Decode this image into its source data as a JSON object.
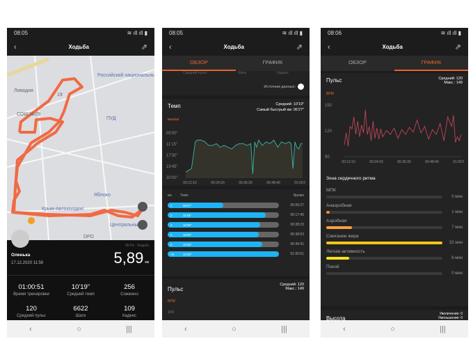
{
  "status": {
    "time1": "08:05",
    "time2": "08:05",
    "time3": "08:06",
    "icons": "▣ ⌕ ▶ •",
    "right": "≋ ıll ıll ▮"
  },
  "header": {
    "title": "Ходьба",
    "back_icon": "chevron-left",
    "share_icon": "share"
  },
  "nav": {
    "back": "‹",
    "home": "○",
    "recents": "|||"
  },
  "tabs": {
    "overview": "ОБЗОР",
    "chart": "ГРАФИК"
  },
  "map": {
    "labels": [
      "Российский национальный",
      "Ливадия",
      "19",
      "СОШ №29",
      "ПУД",
      "Яблоко",
      "Крым-Автохолдинг",
      "Центральный",
      "DPD"
    ],
    "route_color": "#f06a45"
  },
  "summary": {
    "user": "Оленька",
    "datetime": "17.12.2020 11:56",
    "source": "Mi Fit · Ходьба",
    "distance": "5,89",
    "unit": "км",
    "stats": [
      {
        "value": "01:00:51",
        "label": "Время тренировки"
      },
      {
        "value": "10'19\"",
        "label": "Средний темп"
      },
      {
        "value": "256",
        "label": "Сожжено"
      },
      {
        "value": "120",
        "label": "Средний пульс"
      },
      {
        "value": "6622",
        "label": "Шаги"
      },
      {
        "value": "109",
        "label": "Каденс"
      }
    ]
  },
  "overview": {
    "partial_labels": [
      "Средний пульс",
      "Шаги",
      "Каденс"
    ],
    "data_source": "Источник данных:",
    "pace": {
      "title": "Темп",
      "avg": "Средний: 10'19\"",
      "fastest": "Самый быстрый км: 06'27\"",
      "unit": "мин/км"
    },
    "splits_header": {
      "km": "км",
      "pace": "Темп",
      "time": "Время"
    },
    "splits": [
      {
        "km": "1",
        "pace": "06'27\"",
        "time": "00:06:27",
        "fill": 0.5
      },
      {
        "km": "2",
        "pace": "11'18\"",
        "time": "00:17:45",
        "fill": 0.88
      },
      {
        "km": "3",
        "pace": "10'38\"",
        "time": "00:28:23",
        "fill": 0.83
      },
      {
        "km": "4",
        "pace": "10'30\"",
        "time": "00:38:53",
        "fill": 0.82
      },
      {
        "km": "5",
        "pace": "10'48\"",
        "time": "00:49:41",
        "fill": 0.85
      },
      {
        "km": "<6",
        "pace": "12'33\"",
        "time": "01:00:51",
        "fill": 1.0
      }
    ],
    "pulse": {
      "title": "Пульс",
      "avg": "Средний: 120",
      "max": "Макс.: 149",
      "unit": "BPM",
      "tick": "150"
    }
  },
  "graph": {
    "pulse": {
      "title": "Пульс",
      "avg": "Средний: 120",
      "max": "Макс.: 149",
      "unit": "BPM"
    },
    "zones_title": "Зона сердечного ритма",
    "zones": [
      {
        "label": "МПК",
        "value": "0 мин",
        "fill": 0,
        "color": "#f08a30"
      },
      {
        "label": "Анаэробная",
        "value": "1 мин",
        "fill": 0.03,
        "color": "#f08a30"
      },
      {
        "label": "Аэробная",
        "value": "7 мин",
        "fill": 0.22,
        "color": "#f5a040"
      },
      {
        "label": "Сжигание жира",
        "value": "32 мин",
        "fill": 1.0,
        "color": "#f5c518"
      },
      {
        "label": "Легкая активность",
        "value": "6 мин",
        "fill": 0.2,
        "color": "#f5e020"
      },
      {
        "label": "Покой",
        "value": "0 мин",
        "fill": 0,
        "color": "#888"
      }
    ],
    "altitude": {
      "title": "Высота",
      "gain": "Увеличение: 0",
      "loss": "Уменьшение: 0"
    }
  },
  "chart_data": [
    {
      "type": "area",
      "title": "Темп",
      "ylabel": "мин/км",
      "y_ticks": [
        "05'00\"",
        "11'15\"",
        "17'30\"",
        "23'45\"",
        "30'00\""
      ],
      "ylim": [
        30,
        5
      ],
      "x_ticks": [
        "00:12:10",
        "00:24:20",
        "00:36:30",
        "00:48:40",
        "01:00:51"
      ],
      "xlim": [
        0,
        61
      ],
      "color": "#3fb3a8",
      "x": [
        0,
        3,
        5,
        6,
        8,
        10,
        12,
        14,
        16,
        18,
        20,
        22,
        24,
        26,
        28,
        30,
        32,
        34,
        35,
        36,
        37,
        38,
        40,
        42,
        44,
        46,
        48,
        50,
        52,
        54,
        55,
        56,
        57,
        58,
        59,
        60,
        61
      ],
      "y": [
        27,
        25,
        10,
        9,
        9,
        10,
        12,
        12,
        11,
        13,
        12,
        13,
        14,
        12,
        11,
        11,
        12,
        11,
        28,
        10,
        13,
        9,
        12,
        10,
        11,
        9,
        13,
        10,
        11,
        10,
        11,
        25,
        10,
        13,
        14,
        11,
        11
      ]
    },
    {
      "type": "line",
      "title": "Пульс",
      "ylabel": "BPM",
      "y_ticks": [
        "150",
        "120",
        "90"
      ],
      "ylim": [
        90,
        155
      ],
      "x_ticks": [
        "00:12:10",
        "00:24:20",
        "00:36:30",
        "00:48:40",
        "01:00:51"
      ],
      "xlim": [
        0,
        61
      ],
      "color": "#c0455a",
      "x": [
        0,
        1,
        2,
        3,
        4,
        5,
        6,
        7,
        8,
        9,
        10,
        11,
        12,
        13,
        14,
        15,
        16,
        17,
        18,
        19,
        20,
        22,
        24,
        26,
        28,
        30,
        32,
        34,
        36,
        38,
        40,
        42,
        44,
        46,
        48,
        50,
        52,
        54,
        56,
        57,
        58,
        59,
        60,
        61
      ],
      "y": [
        105,
        120,
        103,
        128,
        125,
        140,
        118,
        135,
        115,
        130,
        120,
        149,
        118,
        128,
        110,
        135,
        113,
        126,
        112,
        125,
        115,
        123,
        118,
        126,
        113,
        124,
        118,
        127,
        121,
        136,
        120,
        128,
        112,
        124,
        118,
        132,
        110,
        140,
        128,
        142,
        108,
        115,
        110,
        118
      ]
    }
  ]
}
